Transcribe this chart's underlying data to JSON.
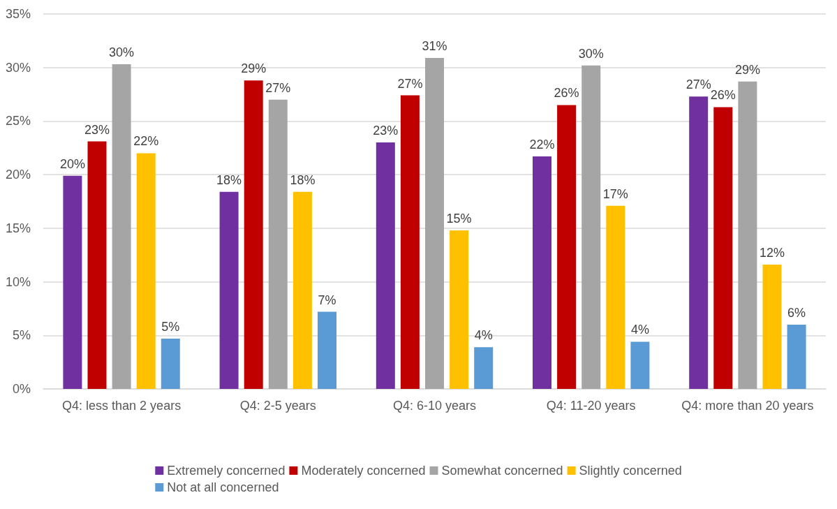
{
  "chart_data": {
    "type": "bar",
    "categories": [
      "Q4: less than 2 years",
      "Q4: 2-5 years",
      "Q4: 6-10 years",
      "Q4: 11-20 years",
      "Q4: more than 20 years"
    ],
    "series": [
      {
        "name": "Extremely concerned",
        "color": "#7030a0",
        "values": [
          19.9,
          18.4,
          23.0,
          21.7,
          27.3
        ],
        "value_labels": [
          "20%",
          "18%",
          "23%",
          "22%",
          "27%"
        ]
      },
      {
        "name": "Moderately concerned",
        "color": "#c00000",
        "values": [
          23.1,
          28.8,
          27.4,
          26.5,
          26.3
        ],
        "value_labels": [
          "23%",
          "29%",
          "27%",
          "26%",
          "26%"
        ]
      },
      {
        "name": "Somewhat concerned",
        "color": "#a5a5a5",
        "values": [
          30.3,
          27.0,
          30.9,
          30.2,
          28.7
        ],
        "value_labels": [
          "30%",
          "27%",
          "31%",
          "30%",
          "29%"
        ]
      },
      {
        "name": "Slightly concerned",
        "color": "#ffc000",
        "values": [
          22.0,
          18.4,
          14.8,
          17.1,
          11.6
        ],
        "value_labels": [
          "22%",
          "18%",
          "15%",
          "17%",
          "12%"
        ]
      },
      {
        "name": "Not at all concerned",
        "color": "#5b9bd5",
        "values": [
          4.7,
          7.2,
          3.9,
          4.4,
          6.0
        ],
        "value_labels": [
          "5%",
          "7%",
          "4%",
          "4%",
          "6%"
        ]
      }
    ],
    "ylim": [
      0,
      35
    ],
    "yticks": [
      {
        "value": 0,
        "label": "0%"
      },
      {
        "value": 5,
        "label": "5%"
      },
      {
        "value": 10,
        "label": "10%"
      },
      {
        "value": 15,
        "label": "15%"
      },
      {
        "value": 20,
        "label": "20%"
      },
      {
        "value": 25,
        "label": "25%"
      },
      {
        "value": 30,
        "label": "30%"
      },
      {
        "value": 35,
        "label": "35%"
      }
    ],
    "grid": "y",
    "legend": "bottom"
  }
}
